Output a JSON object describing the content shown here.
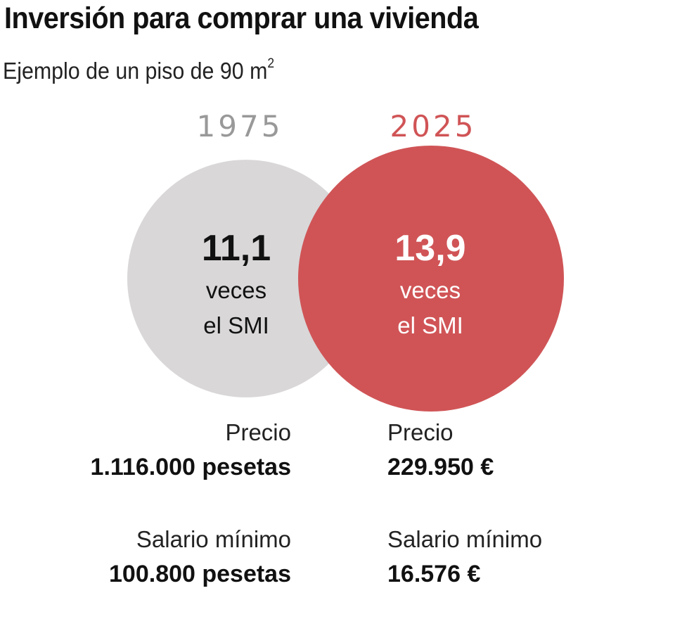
{
  "header": {
    "title": "Inversión para comprar una vivienda",
    "subtitle": "Ejemplo de un piso de 90 m",
    "subtitle_sup": "2"
  },
  "colors": {
    "circle_1975": "#d9d7d8",
    "circle_2025": "#d05456",
    "year_1975": "#999999",
    "year_2025": "#d05456",
    "text_dark": "#111111",
    "text_light": "#ffffff"
  },
  "chart_data": {
    "type": "venn",
    "title": "Inversión para comprar una vivienda",
    "subtitle": "Ejemplo de un piso de 90 m²",
    "unit": "veces el SMI",
    "series": [
      {
        "name": "1975",
        "value": 11.1,
        "value_label": "11,1",
        "line1": "veces",
        "line2": "el SMI",
        "price_label": "Precio",
        "price": "1.116.000 pesetas",
        "price_value": 1116000,
        "price_unit": "pesetas",
        "wage_label": "Salario mínimo",
        "wage": "100.800 pesetas",
        "wage_value": 100800,
        "wage_unit": "pesetas"
      },
      {
        "name": "2025",
        "value": 13.9,
        "value_label": "13,9",
        "line1": "veces",
        "line2": "el SMI",
        "price_label": "Precio",
        "price": "229.950 €",
        "price_value": 229950,
        "price_unit": "€",
        "wage_label": "Salario mínimo",
        "wage": "16.576 €",
        "wage_value": 16576,
        "wage_unit": "€"
      }
    ]
  }
}
